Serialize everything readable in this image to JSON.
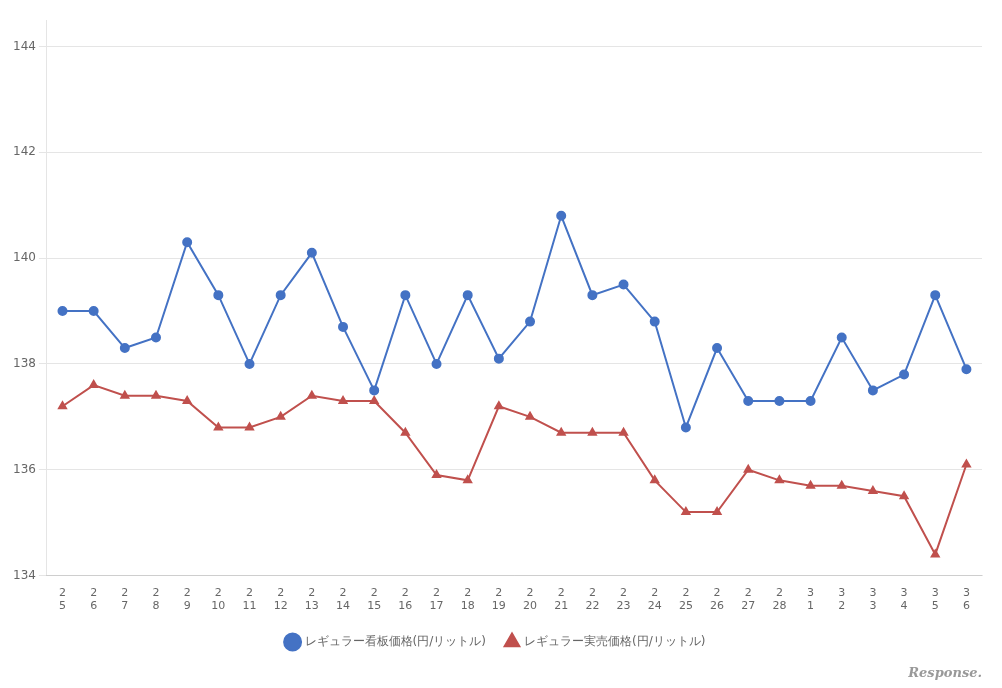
{
  "chart_data": {
    "type": "line",
    "categories": [
      "2\n5",
      "2\n6",
      "2\n7",
      "2\n8",
      "2\n9",
      "2\n10",
      "2\n11",
      "2\n12",
      "2\n13",
      "2\n14",
      "2\n15",
      "2\n16",
      "2\n17",
      "2\n18",
      "2\n19",
      "2\n20",
      "2\n21",
      "2\n22",
      "2\n23",
      "2\n24",
      "2\n25",
      "2\n26",
      "2\n27",
      "2\n28",
      "3\n1",
      "3\n2",
      "3\n3",
      "3\n4",
      "3\n5",
      "3\n6"
    ],
    "series": [
      {
        "name": "レギュラー看板価格(円/リットル)",
        "color": "#4472C4",
        "marker": "circle",
        "values": [
          139.0,
          139.0,
          138.3,
          138.5,
          140.3,
          139.3,
          138.0,
          139.3,
          140.1,
          138.7,
          137.5,
          139.3,
          138.0,
          139.3,
          138.1,
          138.8,
          140.8,
          139.3,
          139.5,
          138.8,
          136.8,
          138.3,
          137.3,
          137.3,
          137.3,
          138.5,
          137.5,
          137.8,
          139.3,
          137.9
        ]
      },
      {
        "name": "レギュラー実売価格(円/リットル)",
        "color": "#C0504D",
        "marker": "triangle",
        "values": [
          137.2,
          137.6,
          137.4,
          137.4,
          137.3,
          136.8,
          136.8,
          137.0,
          137.4,
          137.3,
          137.3,
          136.7,
          135.9,
          135.8,
          137.2,
          137.0,
          136.7,
          136.7,
          136.7,
          135.8,
          135.2,
          135.2,
          136.0,
          135.8,
          135.7,
          135.7,
          135.6,
          135.5,
          134.4,
          136.1
        ]
      }
    ],
    "ylim": [
      134,
      144.5
    ],
    "yticks": [
      134,
      136,
      138,
      140,
      142,
      144
    ],
    "grid": "y",
    "legend": "bottom",
    "annotations": [
      "Response."
    ]
  }
}
